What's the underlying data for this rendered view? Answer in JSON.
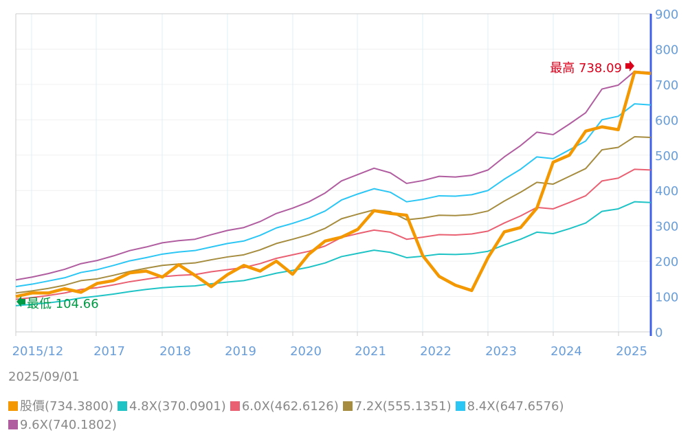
{
  "chart_data": {
    "type": "line",
    "date": "2025/09/01",
    "x_tick_labels": [
      "2015/12",
      "2017",
      "2018",
      "2019",
      "2020",
      "2021",
      "2022",
      "2023",
      "2024",
      "2025"
    ],
    "y_tick_labels": [
      "0",
      "100",
      "200",
      "300",
      "400",
      "500",
      "600",
      "700",
      "800",
      "900"
    ],
    "ylim": [
      0,
      900
    ],
    "grid": true,
    "annotations": {
      "high": "最高 738.09",
      "low": "最低 104.66"
    },
    "series": [
      {
        "name": "9.6X",
        "legend": "9.6X(740.1802)",
        "color": "#b05da0",
        "values": [
          147,
          155,
          165,
          177,
          193,
          202,
          215,
          230,
          240,
          252,
          258,
          262,
          275,
          287,
          295,
          312,
          335,
          350,
          368,
          393,
          427,
          445,
          463,
          450,
          420,
          428,
          440,
          438,
          443,
          458,
          495,
          527,
          565,
          558,
          588,
          620,
          687,
          698,
          737,
          734
        ]
      },
      {
        "name": "8.4X",
        "legend": "8.4X(647.6576)",
        "color": "#2bc6f4",
        "values": [
          128,
          135,
          144,
          153,
          168,
          176,
          188,
          201,
          210,
          220,
          226,
          230,
          240,
          250,
          257,
          273,
          294,
          307,
          322,
          342,
          373,
          390,
          405,
          395,
          368,
          375,
          385,
          384,
          388,
          400,
          432,
          460,
          495,
          490,
          515,
          540,
          600,
          610,
          645,
          642
        ]
      },
      {
        "name": "7.2X",
        "legend": "7.2X(555.1351)",
        "color": "#a58c3f",
        "values": [
          110,
          116,
          123,
          132,
          145,
          150,
          160,
          171,
          180,
          188,
          192,
          195,
          204,
          212,
          218,
          232,
          250,
          262,
          275,
          293,
          320,
          333,
          345,
          340,
          317,
          322,
          330,
          329,
          332,
          342,
          370,
          395,
          423,
          418,
          440,
          462,
          515,
          522,
          552,
          550
        ]
      },
      {
        "name": "6.0X",
        "legend": "6.0X(462.6126)",
        "color": "#e96072",
        "values": [
          92,
          97,
          103,
          110,
          120,
          125,
          133,
          142,
          149,
          156,
          160,
          162,
          170,
          176,
          182,
          193,
          208,
          218,
          228,
          243,
          267,
          278,
          288,
          282,
          262,
          268,
          275,
          274,
          277,
          285,
          308,
          328,
          352,
          348,
          366,
          385,
          427,
          435,
          460,
          458
        ]
      },
      {
        "name": "4.8X",
        "legend": "4.8X(370.0901)",
        "color": "#1fc3c6",
        "values": [
          74,
          78,
          82,
          88,
          96,
          101,
          107,
          114,
          120,
          125,
          128,
          130,
          136,
          141,
          145,
          155,
          166,
          174,
          183,
          195,
          213,
          222,
          231,
          225,
          210,
          214,
          220,
          219,
          221,
          228,
          246,
          262,
          282,
          278,
          292,
          308,
          341,
          348,
          368,
          366
        ]
      },
      {
        "name": "股價",
        "legend": "股價(734.3800)",
        "color": "#f39800",
        "values": [
          100,
          110,
          110,
          122,
          112,
          137,
          145,
          167,
          172,
          155,
          190,
          160,
          128,
          162,
          188,
          172,
          200,
          163,
          220,
          257,
          268,
          290,
          343,
          335,
          330,
          215,
          157,
          132,
          117,
          210,
          283,
          295,
          350,
          480,
          500,
          568,
          580,
          572,
          735,
          731
        ]
      }
    ],
    "legend_order": [
      5,
      4,
      3,
      2,
      1,
      0
    ]
  }
}
